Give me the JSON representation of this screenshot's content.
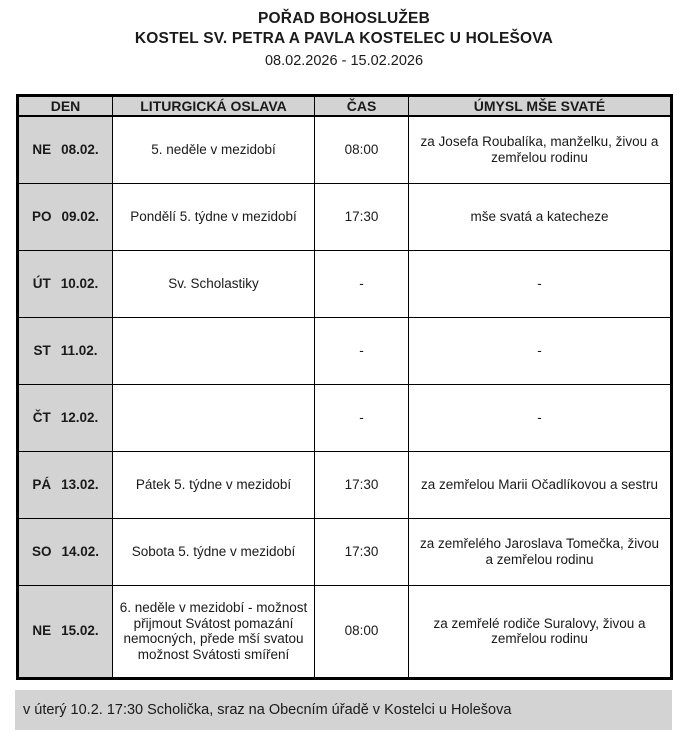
{
  "header": {
    "title": "POŘAD BOHOSLUŽEB",
    "subtitle": "KOSTEL SV. PETRA A PAVLA KOSTELEC U HOLEŠOVA",
    "date_range": "08.02.2026 - 15.02.2026"
  },
  "table": {
    "columns": [
      "DEN",
      "LITURGICKÁ OSLAVA",
      "ČAS",
      "ÚMYSL MŠE SVATÉ"
    ],
    "rows": [
      {
        "day": "NE",
        "date": "08.02.",
        "celebration": "5. neděle v mezidobí",
        "time": "08:00",
        "intention": "za Josefa Roubalíka, manželku, živou a zemřelou rodinu"
      },
      {
        "day": "PO",
        "date": "09.02.",
        "celebration": "Pondělí 5. týdne v mezidobí",
        "time": "17:30",
        "intention": "mše svatá a katecheze"
      },
      {
        "day": "ÚT",
        "date": "10.02.",
        "celebration": "Sv. Scholastiky",
        "time": "-",
        "intention": "-"
      },
      {
        "day": "ST",
        "date": "11.02.",
        "celebration": "",
        "time": "-",
        "intention": "-"
      },
      {
        "day": "ČT",
        "date": "12.02.",
        "celebration": "",
        "time": "-",
        "intention": "-"
      },
      {
        "day": "PÁ",
        "date": "13.02.",
        "celebration": "Pátek 5. týdne v mezidobí",
        "time": "17:30",
        "intention": "za zemřelou Marii Očadlíkovou a sestru"
      },
      {
        "day": "SO",
        "date": "14.02.",
        "celebration": "Sobota 5. týdne v mezidobí",
        "time": "17:30",
        "intention": "za zemřelého Jaroslava Tomečka, živou a zemřelou rodinu"
      },
      {
        "day": "NE",
        "date": "15.02.",
        "celebration": "6. neděle v mezidobí - možnost přijmout Svátost pomazání nemocných, přede mší svatou možnost Svátosti smíření",
        "time": "08:00",
        "intention": "za zemřelé rodiče Suralovy, živou a zemřelou rodinu"
      }
    ]
  },
  "footer": {
    "note": "v úterý 10.2. 17:30 Scholička, sraz na Obecním úřadě v Kostelci u Holešova"
  },
  "colors": {
    "cell_gray": "#d3d3d3",
    "border": "#000000",
    "background": "#ffffff"
  }
}
